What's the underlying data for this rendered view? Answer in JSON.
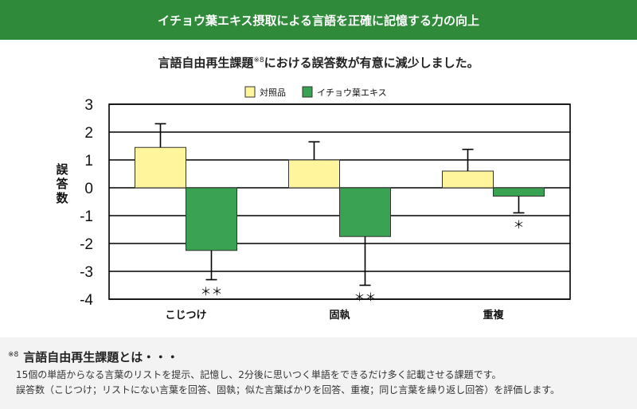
{
  "header": {
    "title": "イチョウ葉エキス摂取による言語を正確に記憶する力の向上"
  },
  "subtitle": {
    "text": "言語自由再生課題",
    "note": "※8",
    "text_after": "における誤答数が有意に減少しました。"
  },
  "chart_data": {
    "type": "bar",
    "ylabel": "誤答数",
    "ylim": [
      -4,
      3
    ],
    "yticks": [
      "3",
      "2",
      "1",
      "0",
      "-1",
      "-2",
      "-3",
      "-4"
    ],
    "categories": [
      "こじつけ",
      "固執",
      "重複"
    ],
    "series": [
      {
        "name": "対照品",
        "color": "#fff59d",
        "values": [
          1.45,
          1.0,
          0.6
        ],
        "error": [
          0.85,
          0.65,
          0.78
        ]
      },
      {
        "name": "イチョウ葉エキス",
        "color": "#3aa353",
        "values": [
          -2.25,
          -1.75,
          -0.3
        ],
        "error": [
          1.05,
          1.75,
          0.6
        ]
      }
    ],
    "significance": [
      "＊＊",
      "＊＊",
      "＊"
    ],
    "grid": true,
    "legend": "top"
  },
  "footnote": {
    "mark": "※8",
    "title": "言語自由再生課題とは・・・",
    "lines": [
      "15個の単語からなる言葉のリストを提示、記憶し、2分後に思いつく単語をできるだけ多く記載させる課題です。",
      "誤答数（こじつけ；リストにない言葉を回答、固執；似た言葉ばかりを回答、重複；同じ言葉を繰り返し回答）を評価します。"
    ]
  }
}
